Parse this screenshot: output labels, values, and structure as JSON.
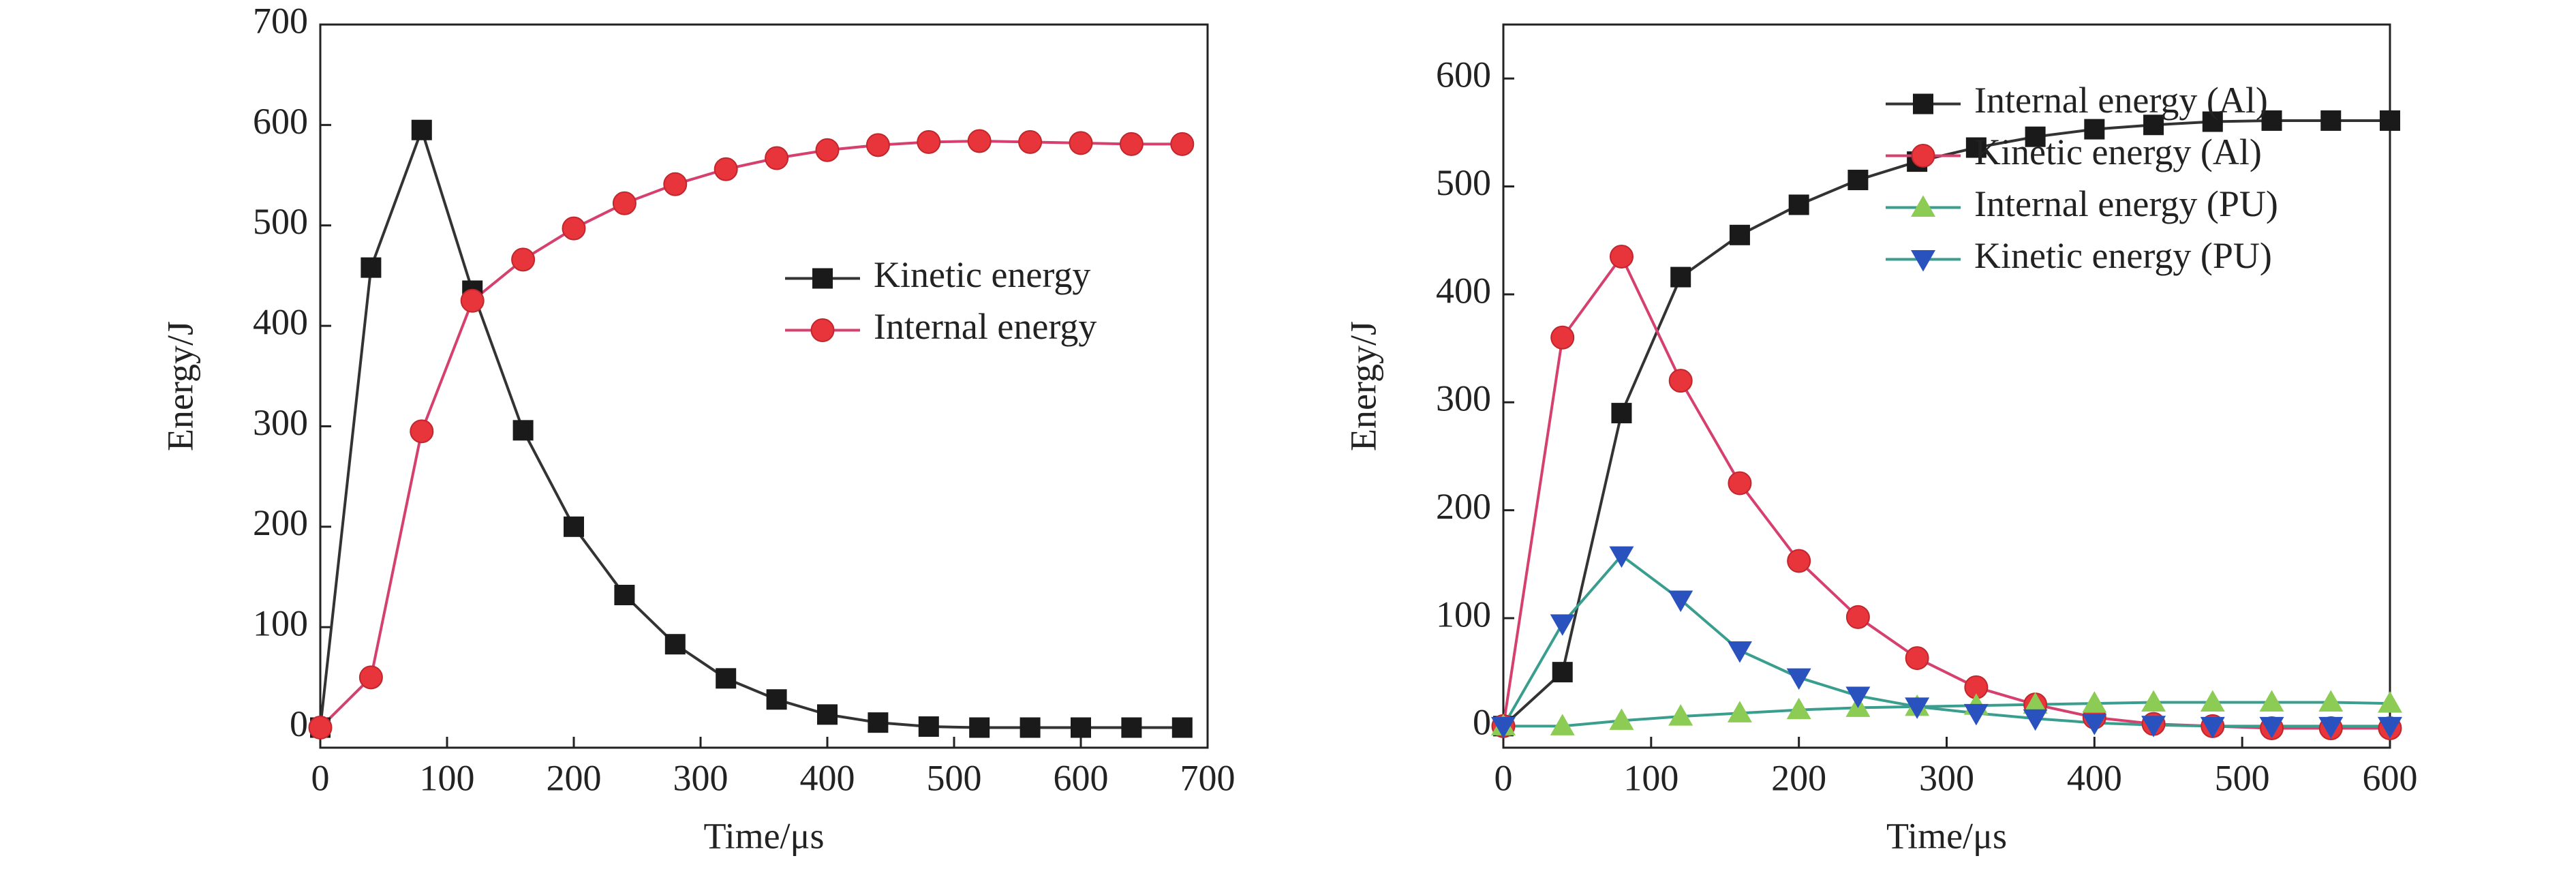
{
  "chart_data": [
    {
      "type": "line",
      "x_label": "Time/μs",
      "y_label": "Energy/J",
      "x": [
        0,
        40,
        80,
        120,
        160,
        200,
        240,
        280,
        320,
        360,
        400,
        440,
        480,
        520,
        560,
        600,
        640,
        680
      ],
      "xlim": [
        0,
        700
      ],
      "xticks": [
        0,
        100,
        200,
        300,
        400,
        500,
        600,
        700
      ],
      "ylim": [
        -20,
        700
      ],
      "yticks": [
        0,
        100,
        200,
        300,
        400,
        500,
        600,
        700
      ],
      "legend": "center right",
      "series": [
        {
          "name": "Kinetic energy",
          "color": "#1a1a1a",
          "line_color": "#333333",
          "marker": "square",
          "values": [
            0,
            458,
            595,
            435,
            296,
            200,
            132,
            83,
            49,
            28,
            13,
            5,
            1,
            0,
            0,
            0,
            0,
            0
          ]
        },
        {
          "name": "Internal energy",
          "color": "#e8343b",
          "line_color": "#d6406e",
          "marker": "circle",
          "values": [
            0,
            50,
            295,
            425,
            466,
            497,
            522,
            541,
            556,
            567,
            575,
            580,
            583,
            584,
            583,
            582,
            581,
            581
          ]
        }
      ]
    },
    {
      "type": "line",
      "x_label": "Time/μs",
      "y_label": "Energy/J",
      "x": [
        0,
        40,
        80,
        120,
        160,
        200,
        240,
        280,
        320,
        360,
        400,
        440,
        480,
        520,
        560,
        600
      ],
      "xlim": [
        0,
        600
      ],
      "xticks": [
        0,
        100,
        200,
        300,
        400,
        500,
        600
      ],
      "ylim": [
        -20,
        650
      ],
      "yticks": [
        0,
        100,
        200,
        300,
        400,
        500,
        600
      ],
      "legend": "center right",
      "series": [
        {
          "name": "Internal energy (Al)",
          "color": "#1a1a1a",
          "line_color": "#333333",
          "marker": "square",
          "values": [
            0,
            50,
            290,
            416,
            455,
            483,
            506,
            523,
            536,
            546,
            553,
            557,
            560,
            561,
            561,
            561
          ]
        },
        {
          "name": "Kinetic energy (Al)",
          "color": "#e8343b",
          "line_color": "#d6406e",
          "marker": "circle",
          "values": [
            0,
            360,
            435,
            320,
            225,
            153,
            101,
            63,
            36,
            20,
            8,
            2,
            0,
            -2,
            -2,
            -2
          ]
        },
        {
          "name": "Internal energy (PU)",
          "color": "#8dcc54",
          "line_color": "#3a9e8f",
          "marker": "triangle-up",
          "values": [
            0,
            0,
            5,
            9,
            12,
            15,
            17,
            18,
            19,
            20,
            21,
            22,
            22,
            22,
            22,
            21
          ]
        },
        {
          "name": "Kinetic energy (PU)",
          "color": "#2a52be",
          "line_color": "#3a9e8f",
          "marker": "triangle-down",
          "values": [
            0,
            95,
            158,
            117,
            70,
            45,
            28,
            18,
            12,
            7,
            3,
            1,
            0,
            0,
            0,
            0
          ]
        }
      ]
    }
  ]
}
